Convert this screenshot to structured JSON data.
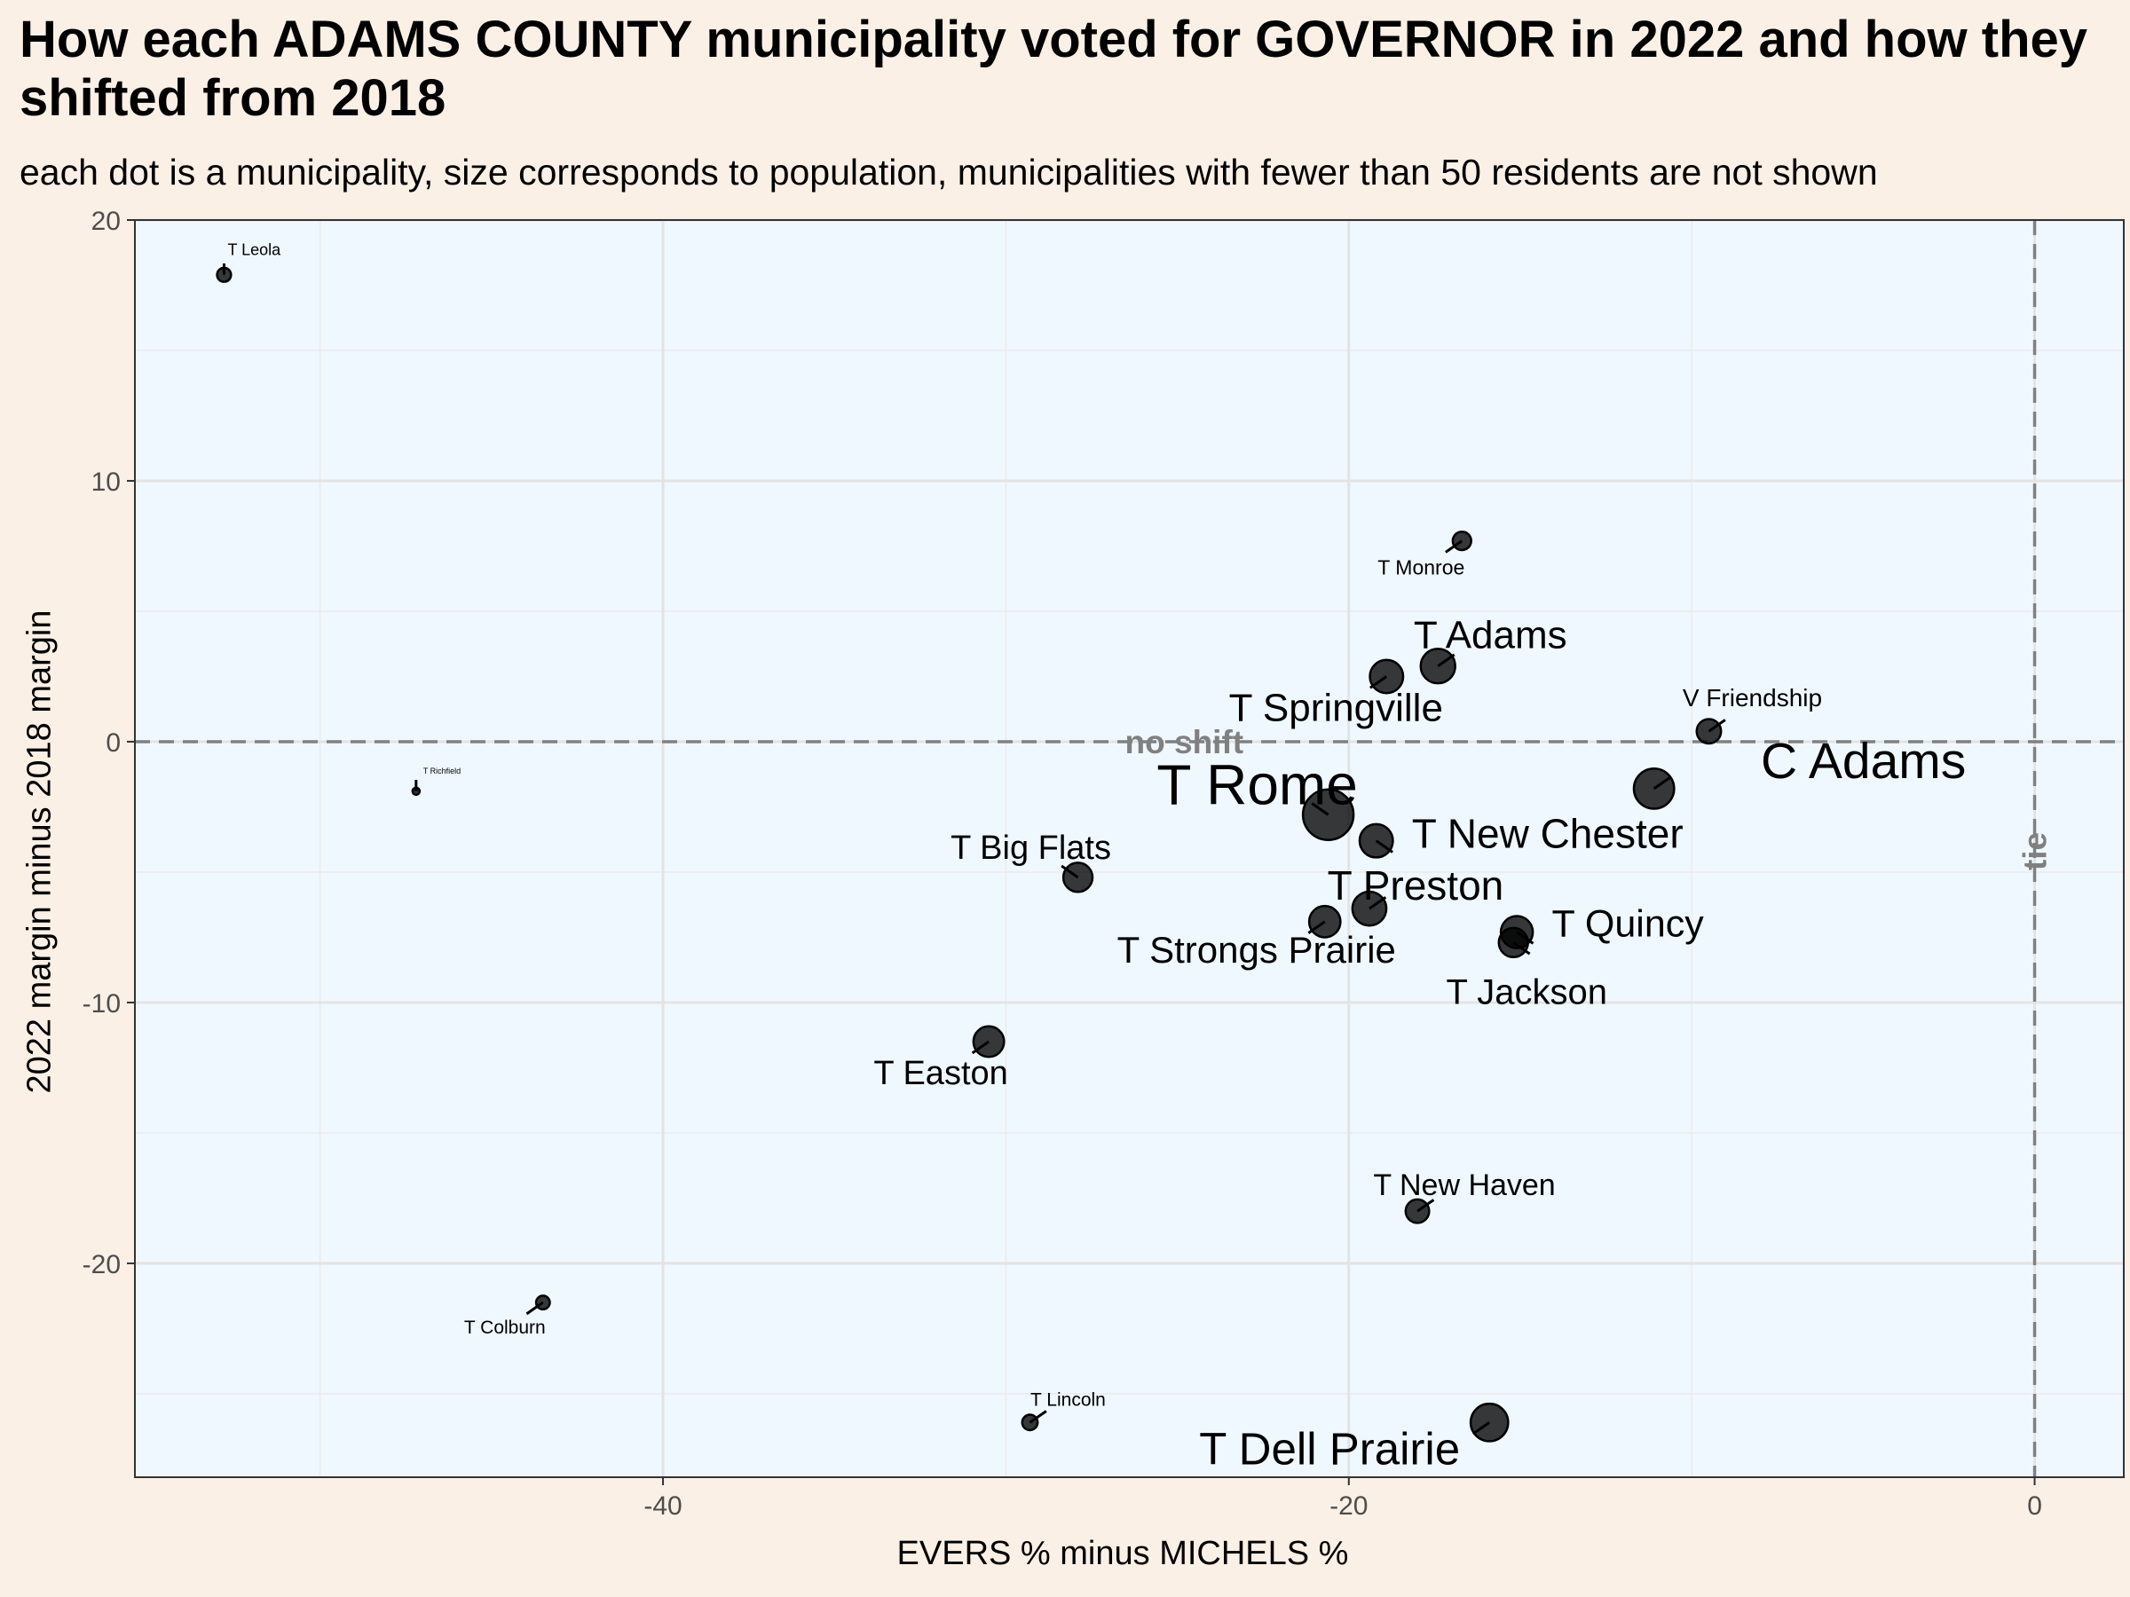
{
  "chart_data": {
    "type": "scatter",
    "title": "How each ADAMS COUNTY municipality voted for GOVERNOR in 2022 and how they shifted from 2018",
    "subtitle": "each dot is a municipality, size corresponds to population, municipalities with fewer than 50 residents are not shown",
    "xlabel": "EVERS % minus MICHELS %",
    "ylabel": "2022 margin minus 2018 margin",
    "xlim": [
      -55.4,
      2.6
    ],
    "ylim": [
      -28.2,
      20
    ],
    "x_ticks": [
      -40,
      -20,
      0
    ],
    "y_ticks": [
      -20,
      -10,
      0,
      10,
      20
    ],
    "grid": true,
    "reference_lines": [
      {
        "axis": "y",
        "value": 0,
        "label": "no shift"
      },
      {
        "axis": "x",
        "value": 0,
        "label": "tie"
      }
    ],
    "points": [
      {
        "name": "T Leola",
        "x": -52.8,
        "y": 17.9,
        "pop": 230
      },
      {
        "name": "T Richfield",
        "x": -47.2,
        "y": -1.9,
        "pop": 60
      },
      {
        "name": "T Colburn",
        "x": -43.5,
        "y": -21.5,
        "pop": 220
      },
      {
        "name": "T Lincoln",
        "x": -29.3,
        "y": -26.1,
        "pop": 280
      },
      {
        "name": "T Easton",
        "x": -30.5,
        "y": -11.5,
        "pop": 1100
      },
      {
        "name": "T Big Flats",
        "x": -27.9,
        "y": -5.2,
        "pop": 1000
      },
      {
        "name": "T Strongs Prairie",
        "x": -20.7,
        "y": -6.9,
        "pop": 1150
      },
      {
        "name": "T Rome",
        "x": -20.6,
        "y": -2.8,
        "pop": 3000
      },
      {
        "name": "T Preston",
        "x": -19.4,
        "y": -6.4,
        "pop": 1350
      },
      {
        "name": "T New Chester",
        "x": -19.2,
        "y": -3.8,
        "pop": 1300
      },
      {
        "name": "T Springville",
        "x": -18.9,
        "y": 2.5,
        "pop": 1300
      },
      {
        "name": "T New Haven",
        "x": -18.0,
        "y": -18.0,
        "pop": 650
      },
      {
        "name": "T Adams",
        "x": -17.4,
        "y": 2.9,
        "pop": 1400
      },
      {
        "name": "T Monroe",
        "x": -16.7,
        "y": 7.7,
        "pop": 400
      },
      {
        "name": "T Dell Prairie",
        "x": -15.9,
        "y": -26.1,
        "pop": 1650
      },
      {
        "name": "T Jackson",
        "x": -15.2,
        "y": -7.7,
        "pop": 1000
      },
      {
        "name": "T Quincy",
        "x": -15.1,
        "y": -7.3,
        "pop": 1200
      },
      {
        "name": "C Adams",
        "x": -11.1,
        "y": -1.8,
        "pop": 1900
      },
      {
        "name": "V Friendship",
        "x": -9.5,
        "y": 0.4,
        "pop": 700
      }
    ]
  }
}
